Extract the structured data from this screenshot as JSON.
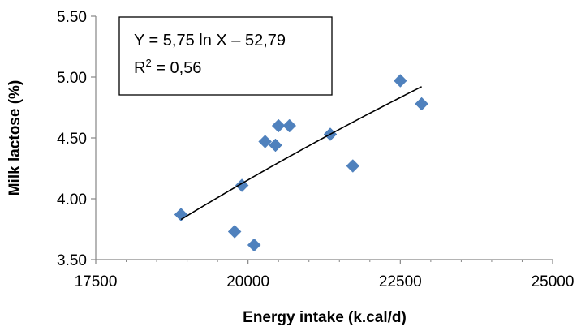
{
  "chart_data": {
    "type": "scatter",
    "title": "",
    "xlabel": "Energy intake (k.cal/d)",
    "ylabel": "Milk lactose (%)",
    "xlim": [
      17500,
      25000
    ],
    "ylim": [
      3.5,
      5.5
    ],
    "x_ticks": [
      "17500",
      "20000",
      "22500",
      "25000"
    ],
    "y_ticks": [
      "3.50",
      "4.00",
      "4.50",
      "5.00",
      "5.50"
    ],
    "grid": false,
    "legend": "none",
    "marker_color": "#4f81bd",
    "points": [
      {
        "x": 18900,
        "y": 3.87
      },
      {
        "x": 19780,
        "y": 3.73
      },
      {
        "x": 19900,
        "y": 4.11
      },
      {
        "x": 20100,
        "y": 3.62
      },
      {
        "x": 20280,
        "y": 4.47
      },
      {
        "x": 20450,
        "y": 4.44
      },
      {
        "x": 20500,
        "y": 4.6
      },
      {
        "x": 20680,
        "y": 4.6
      },
      {
        "x": 21350,
        "y": 4.53
      },
      {
        "x": 21720,
        "y": 4.27
      },
      {
        "x": 22500,
        "y": 4.97
      },
      {
        "x": 22850,
        "y": 4.78
      }
    ],
    "trendline": {
      "type": "logarithmic",
      "a": 5.75,
      "b": -52.79,
      "x_from": 18900,
      "x_to": 22850,
      "equation_line1": "Y = 5,75 ln X – 52,79",
      "equation_line2_prefix": "R",
      "equation_line2_sup": "2",
      "equation_line2_suffix": " = 0,56"
    }
  }
}
